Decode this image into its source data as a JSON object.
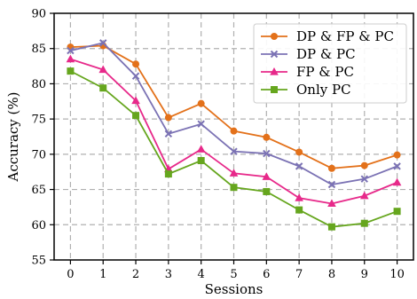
{
  "chart_data": {
    "type": "line",
    "xlabel": "Sessions",
    "ylabel": "Accuracy (%)",
    "x": [
      0,
      1,
      2,
      3,
      4,
      5,
      6,
      7,
      8,
      9,
      10
    ],
    "xlim": [
      -0.5,
      10.5
    ],
    "ylim": [
      55,
      90
    ],
    "yticks": [
      55,
      60,
      65,
      70,
      75,
      80,
      85,
      90
    ],
    "grid": true,
    "legend_position": "top-right",
    "series": [
      {
        "name": "DP & FP & PC",
        "color": "#e3711a",
        "marker": "circle",
        "values": [
          85.2,
          85.4,
          82.8,
          75.2,
          77.2,
          73.3,
          72.4,
          70.3,
          68.0,
          68.4,
          69.9
        ]
      },
      {
        "name": "DP & PC",
        "color": "#7b72b4",
        "marker": "x",
        "values": [
          84.7,
          85.8,
          81.1,
          72.9,
          74.3,
          70.4,
          70.1,
          68.3,
          65.7,
          66.5,
          68.3
        ]
      },
      {
        "name": "FP & PC",
        "color": "#e7298a",
        "marker": "triangle",
        "values": [
          83.5,
          82.0,
          77.6,
          67.9,
          70.7,
          67.3,
          66.8,
          63.8,
          63.0,
          64.1,
          66.0
        ]
      },
      {
        "name": "Only PC",
        "color": "#66a61e",
        "marker": "square",
        "values": [
          81.8,
          79.4,
          75.5,
          67.2,
          69.1,
          65.3,
          64.7,
          62.1,
          59.7,
          60.2,
          61.9
        ]
      }
    ]
  }
}
